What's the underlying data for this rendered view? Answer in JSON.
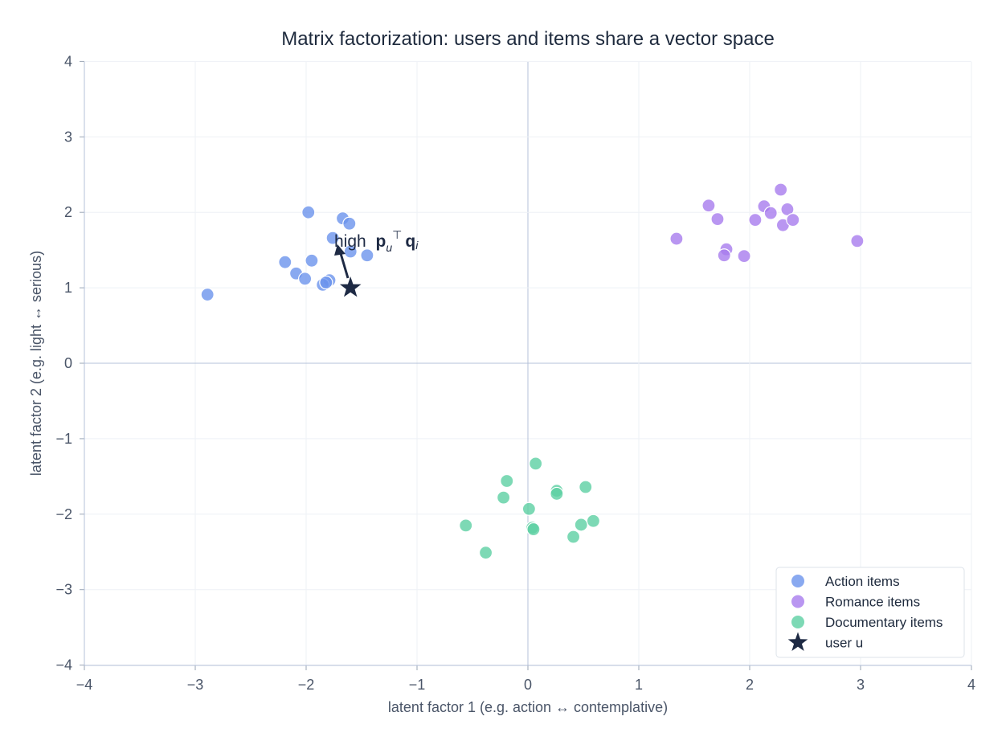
{
  "chart_data": {
    "type": "scatter",
    "title": "Matrix factorization: users and items share a vector space",
    "xlabel": "latent factor 1   (e.g. action ↔ contemplative)",
    "ylabel": "latent factor 2   (e.g. light ↔ serious)",
    "xlim": [
      -4,
      4
    ],
    "ylim": [
      -4,
      4
    ],
    "xticks": [
      "−4",
      "−3",
      "−2",
      "−1",
      "0",
      "1",
      "2",
      "3",
      "4"
    ],
    "yticks": [
      "−4",
      "−3",
      "−2",
      "−1",
      "0",
      "1",
      "2",
      "3",
      "4"
    ],
    "grid": true,
    "legend_position": "lower right",
    "annotation": {
      "text": "high  p_u^T q_i",
      "from": [
        -1.6,
        1.0
      ],
      "to": [
        -1.7,
        1.55
      ]
    },
    "series": [
      {
        "name": "Action items",
        "color": "#6b93ec",
        "points": [
          [
            -2.89,
            0.91
          ],
          [
            -1.98,
            2.0
          ],
          [
            -1.67,
            1.92
          ],
          [
            -1.61,
            1.85
          ],
          [
            -1.76,
            1.66
          ],
          [
            -1.6,
            1.48
          ],
          [
            -1.45,
            1.43
          ],
          [
            -2.19,
            1.34
          ],
          [
            -1.95,
            1.36
          ],
          [
            -2.09,
            1.19
          ],
          [
            -2.01,
            1.12
          ],
          [
            -1.79,
            1.1
          ],
          [
            -1.85,
            1.04
          ],
          [
            -1.82,
            1.07
          ]
        ]
      },
      {
        "name": "Romance items",
        "color": "#a77cee",
        "points": [
          [
            1.34,
            1.65
          ],
          [
            1.63,
            2.09
          ],
          [
            1.71,
            1.91
          ],
          [
            2.13,
            2.08
          ],
          [
            2.05,
            1.9
          ],
          [
            2.19,
            1.99
          ],
          [
            2.28,
            2.3
          ],
          [
            2.34,
            2.04
          ],
          [
            2.3,
            1.83
          ],
          [
            2.39,
            1.9
          ],
          [
            2.97,
            1.62
          ],
          [
            1.79,
            1.51
          ],
          [
            1.77,
            1.43
          ],
          [
            1.95,
            1.42
          ]
        ]
      },
      {
        "name": "Documentary items",
        "color": "#5dcfa3",
        "points": [
          [
            0.07,
            -1.33
          ],
          [
            -0.19,
            -1.56
          ],
          [
            -0.22,
            -1.78
          ],
          [
            0.01,
            -1.93
          ],
          [
            0.26,
            -1.69
          ],
          [
            0.26,
            -1.73
          ],
          [
            0.52,
            -1.64
          ],
          [
            -0.56,
            -2.15
          ],
          [
            0.04,
            -2.18
          ],
          [
            0.05,
            -2.2
          ],
          [
            0.48,
            -2.14
          ],
          [
            0.59,
            -2.09
          ],
          [
            0.41,
            -2.3
          ],
          [
            -0.38,
            -2.51
          ]
        ]
      },
      {
        "name": "user u",
        "color": "#1e2a44",
        "marker": "star",
        "points": [
          [
            -1.6,
            1.0
          ]
        ]
      }
    ]
  }
}
